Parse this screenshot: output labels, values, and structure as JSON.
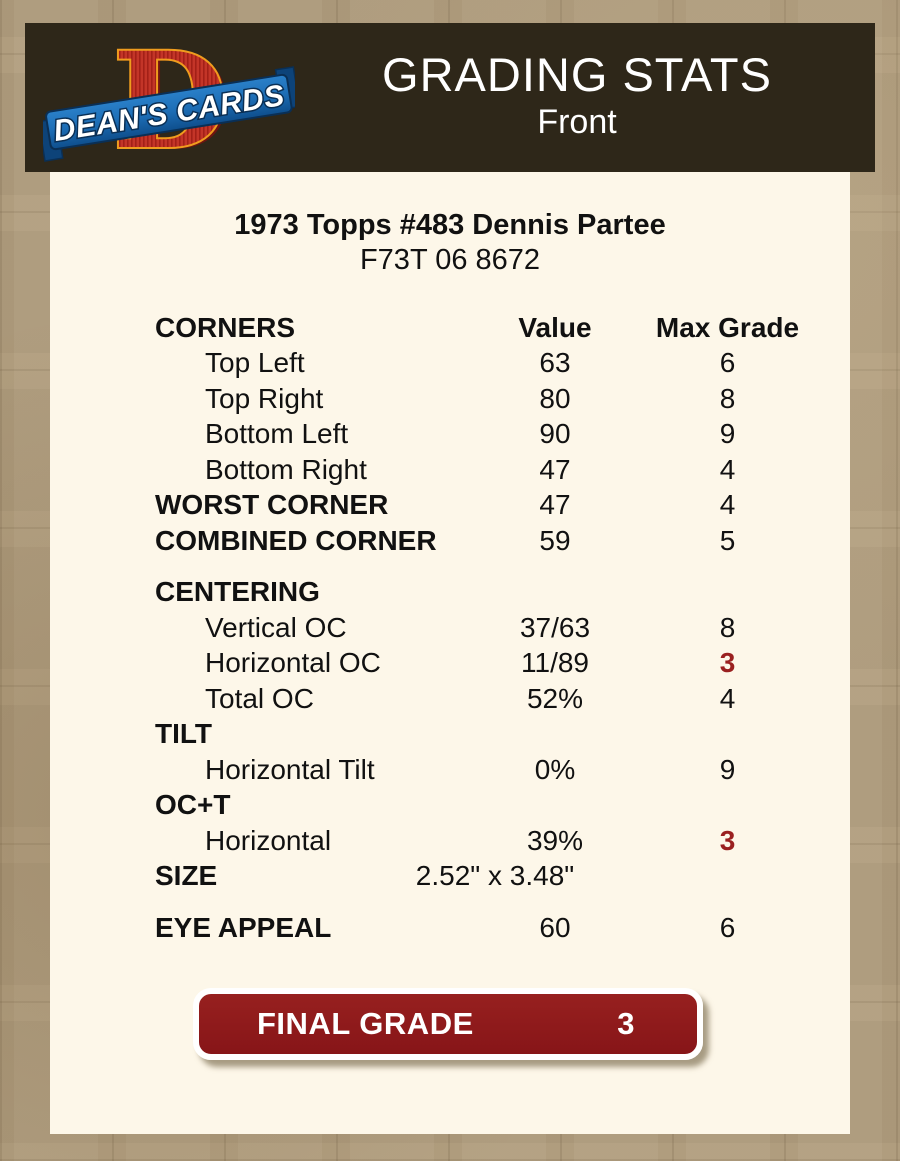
{
  "header": {
    "title": "GRADING STATS",
    "subtitle": "Front",
    "logo": {
      "brand": "DEAN'S CARDS",
      "monogram": "D"
    }
  },
  "card": {
    "title": "1973 Topps #483 Dennis Partee",
    "code": "F73T 06 8672"
  },
  "table": {
    "sections": [
      {
        "rows": [
          {
            "label": "CORNERS",
            "value": "Value",
            "max": "Max Grade",
            "header": true
          },
          {
            "label": "Top Left",
            "value": "63",
            "max": "6",
            "indent": true
          },
          {
            "label": "Top Right",
            "value": "80",
            "max": "8",
            "indent": true
          },
          {
            "label": "Bottom Left",
            "value": "90",
            "max": "9",
            "indent": true
          },
          {
            "label": "Bottom Right",
            "value": "47",
            "max": "4",
            "indent": true
          },
          {
            "label": "WORST CORNER",
            "value": "47",
            "max": "4",
            "bold": true
          },
          {
            "label": "COMBINED CORNER",
            "value": "59",
            "max": "5",
            "bold": true
          }
        ]
      },
      {
        "rows": [
          {
            "label": "CENTERING",
            "value": "",
            "max": "",
            "bold": true
          },
          {
            "label": "Vertical OC",
            "value": "37/63",
            "max": "8",
            "indent": true
          },
          {
            "label": "Horizontal OC",
            "value": "11/89",
            "max": "3",
            "indent": true,
            "max_red": true
          },
          {
            "label": "Total OC",
            "value": "52%",
            "max": "4",
            "indent": true
          },
          {
            "label": "TILT",
            "value": "",
            "max": "",
            "bold": true
          },
          {
            "label": "Horizontal Tilt",
            "value": "0%",
            "max": "9",
            "indent": true
          },
          {
            "label": "OC+T",
            "value": "",
            "max": "",
            "bold": true
          },
          {
            "label": "Horizontal",
            "value": "39%",
            "max": "3",
            "indent": true,
            "max_red": true
          },
          {
            "label": "SIZE",
            "value": "2.52\" x 3.48\"",
            "max": "",
            "bold": true,
            "size_row": true
          }
        ]
      },
      {
        "rows": [
          {
            "label": "EYE APPEAL",
            "value": "60",
            "max": "6",
            "bold": true
          }
        ]
      }
    ]
  },
  "final_grade": {
    "label": "FINAL GRADE",
    "value": "3"
  },
  "colors": {
    "page_bg": "#b09d7e",
    "header_bg": "#2e2719",
    "panel_bg": "#fdf7e9",
    "grade_red": "#9a2020",
    "button_red": "#8e191c",
    "logo_red": "#c13227",
    "logo_orange": "#ef9c1e",
    "ribbon_blue": "#1d6db5"
  }
}
